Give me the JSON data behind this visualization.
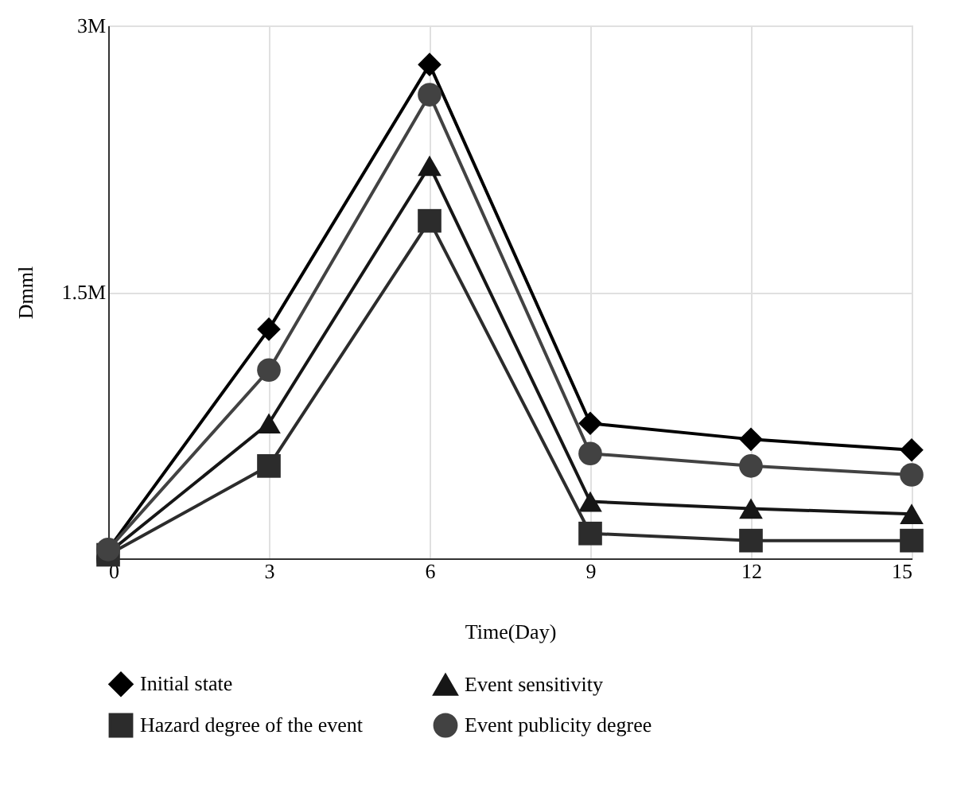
{
  "chart_data": {
    "type": "line",
    "xlabel": "Time(Day)",
    "ylabel": "Dmml",
    "x": [
      0,
      3,
      6,
      9,
      12,
      15
    ],
    "series": [
      {
        "name": "Initial state",
        "color": "#000000",
        "marker": "diamond",
        "values": [
          50000,
          1290000,
          2780000,
          760000,
          670000,
          610000
        ]
      },
      {
        "name": "Event sensitivity",
        "color": "#161616",
        "marker": "triangle",
        "values": [
          30000,
          760000,
          2210000,
          320000,
          280000,
          250000
        ]
      },
      {
        "name": "Hazard degree of the event",
        "color": "#2c2c2c",
        "marker": "square",
        "values": [
          20000,
          520000,
          1900000,
          140000,
          100000,
          100000
        ]
      },
      {
        "name": "Event publicity degree",
        "color": "#424242",
        "marker": "circle",
        "values": [
          50000,
          1060000,
          2610000,
          590000,
          520000,
          470000
        ]
      }
    ],
    "xlim": [
      0,
      15
    ],
    "xticks": [
      0,
      3,
      6,
      9,
      12,
      15
    ],
    "ylim": [
      0,
      3000000
    ],
    "yticks": [
      0,
      {
        "value": 1500000,
        "label": "1.5M"
      },
      {
        "value": 3000000,
        "label": "3M"
      }
    ],
    "grid": true,
    "legend": "bottom",
    "line_style": "solid"
  }
}
